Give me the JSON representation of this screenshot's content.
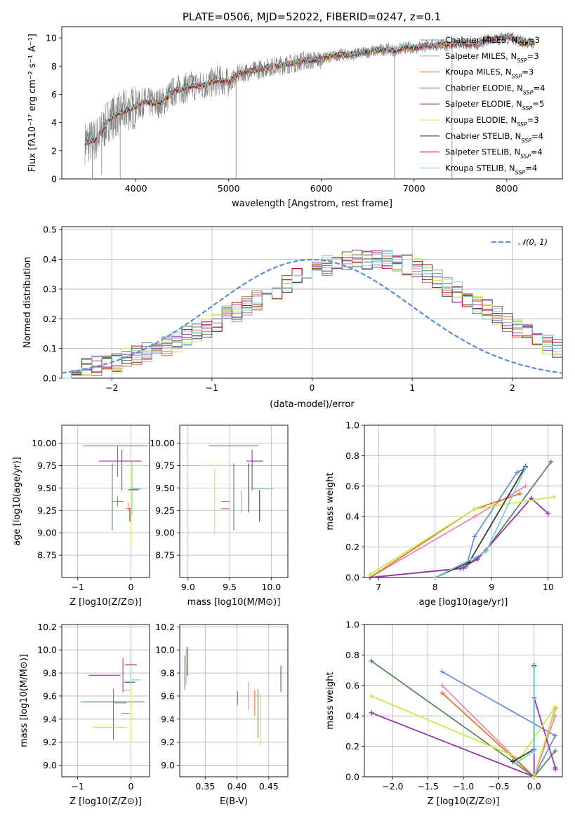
{
  "chart_data": [
    {
      "type": "line",
      "title": "PLATE=0506, MJD=52022, FIBERID=0247, z=0.1",
      "xlabel": "wavelength [Angstrom, rest frame]",
      "ylabel": "Flux [fλ10⁻¹⁷ erg cm⁻² s⁻¹ A⁻¹]",
      "xlim": [
        3200,
        8600
      ],
      "ylim": [
        0,
        10.8
      ],
      "xticks": [
        4000,
        5000,
        6000,
        7000,
        8000
      ],
      "yticks": [
        0,
        2,
        4,
        6,
        8,
        10
      ],
      "data_series": {
        "name": "",
        "color": "#808080",
        "note": "observed spectrum (gray)"
      },
      "legend_position": "top-right",
      "series": [
        {
          "name": "Chabrier MILES, N_SSP=3",
          "color": "#6b8fdc"
        },
        {
          "name": "Salpeter MILES, N_SSP=3",
          "color": "#e88bb3"
        },
        {
          "name": "Kroupa MILES, N_SSP=3",
          "color": "#e0762a"
        },
        {
          "name": "Chabrier ELODIE, N_SSP=4",
          "color": "#5a8a5e"
        },
        {
          "name": "Salpeter ELODIE, N_SSP=5",
          "color": "#9b30b0"
        },
        {
          "name": "Kroupa ELODIE, N_SSP=3",
          "color": "#cde84a"
        },
        {
          "name": "Chabrier STELIB, N_SSP=4",
          "color": "#3a3a3a"
        },
        {
          "name": "Salpeter STELIB, N_SSP=4",
          "color": "#b01818"
        },
        {
          "name": "Kroupa STELIB, N_SSP=4",
          "color": "#7ecfd6"
        }
      ],
      "model_curve": {
        "x": [
          3450,
          3550,
          3650,
          3700,
          3750,
          3800,
          3900,
          4000,
          4100,
          4200,
          4300,
          4400,
          4500,
          4600,
          4700,
          4800,
          4900,
          5000,
          5100,
          5200,
          5300,
          5400,
          5500,
          5600,
          5700,
          5800,
          5900,
          6000,
          6100,
          6200,
          6300,
          6400,
          6500,
          6600,
          6700,
          6800,
          6900,
          7000,
          7100,
          7200,
          7300,
          7400,
          7500,
          7600,
          7700,
          7800,
          7900,
          8000,
          8100,
          8200,
          8300
        ],
        "y": [
          2.6,
          2.7,
          3.5,
          4.2,
          4.4,
          4.5,
          4.9,
          5.1,
          5.5,
          5.3,
          5.5,
          6.2,
          6.4,
          6.6,
          6.6,
          6.8,
          7.0,
          6.8,
          7.4,
          7.6,
          7.7,
          7.9,
          8.0,
          8.1,
          8.2,
          8.4,
          8.4,
          8.5,
          8.7,
          8.8,
          8.8,
          8.9,
          9.0,
          9.1,
          9.2,
          9.1,
          9.3,
          9.3,
          9.4,
          9.5,
          9.5,
          9.5,
          9.6,
          9.5,
          9.6,
          9.9,
          9.9,
          10.1,
          9.9,
          9.7,
          9.6
        ]
      }
    },
    {
      "type": "histogram",
      "xlabel": "(data-model)/error",
      "ylabel": "Normed distribution",
      "xlim": [
        -2.5,
        2.5
      ],
      "ylim": [
        0,
        0.51
      ],
      "xticks": [
        -2,
        -1,
        0,
        1,
        2
      ],
      "yticks": [
        0.0,
        0.1,
        0.2,
        0.3,
        0.4,
        0.5
      ],
      "bin_width": 0.1,
      "bin_start": -2.5,
      "envelope": [
        0.03,
        0.03,
        0.04,
        0.04,
        0.05,
        0.05,
        0.07,
        0.08,
        0.09,
        0.1,
        0.11,
        0.12,
        0.14,
        0.15,
        0.17,
        0.19,
        0.21,
        0.22,
        0.24,
        0.26,
        0.28,
        0.3,
        0.32,
        0.34,
        0.35,
        0.37,
        0.38,
        0.39,
        0.39,
        0.4,
        0.4,
        0.4,
        0.4,
        0.39,
        0.38,
        0.37,
        0.35,
        0.33,
        0.31,
        0.29,
        0.27,
        0.25,
        0.23,
        0.21,
        0.19,
        0.17,
        0.15,
        0.13,
        0.11,
        0.1
      ],
      "gaussian": {
        "name": "𝒩(0, 1)",
        "color": "#5b8ed6",
        "style": "dashed"
      },
      "legend_position": "top-right"
    },
    {
      "type": "scatter",
      "xlabel": "Z [log10(Z/Z⊙)]",
      "ylabel": "age  [log10(age/yr)]",
      "xlim": [
        -1.3,
        0.35
      ],
      "ylim": [
        8.5,
        10.2
      ],
      "xticks": [
        -1,
        0
      ],
      "yticks": [
        8.75,
        9.0,
        9.25,
        9.5,
        9.75,
        10.0
      ],
      "points": [
        {
          "x": -0.3,
          "y": 9.97,
          "xerr": 1.2,
          "yerr": 0.0,
          "color": "#5a8a5e"
        },
        {
          "x": -0.25,
          "y": 9.8,
          "xerr": 0.0,
          "yerr": 0.35,
          "color": "#5a8a5e"
        },
        {
          "x": -0.35,
          "y": 9.4,
          "xerr": 0.0,
          "yerr": 0.75,
          "color": "#5a8a5e"
        },
        {
          "x": -0.2,
          "y": 9.8,
          "xerr": 0.8,
          "yerr": 0.0,
          "color": "#9b30b0"
        },
        {
          "x": -0.17,
          "y": 9.7,
          "xerr": 0.0,
          "yerr": 0.45,
          "color": "#9b30b0"
        },
        {
          "x": 0.0,
          "y": 9.75,
          "xerr": 0.55,
          "yerr": 0.0,
          "color": "#cde84a"
        },
        {
          "x": 0.0,
          "y": 9.3,
          "xerr": 0.0,
          "yerr": 0.9,
          "color": "#cde84a"
        },
        {
          "x": 0.05,
          "y": 9.48,
          "xerr": 0.2,
          "yerr": 0.0,
          "color": "#3a3a3a"
        },
        {
          "x": 0.02,
          "y": 9.5,
          "xerr": 0.0,
          "yerr": 0.6,
          "color": "#7ecfd6"
        },
        {
          "x": 0.1,
          "y": 9.49,
          "xerr": 0.2,
          "yerr": 0.0,
          "color": "#7ecfd6"
        },
        {
          "x": -0.25,
          "y": 9.35,
          "xerr": 0.22,
          "yerr": 0.0,
          "color": "#6b8fdc"
        },
        {
          "x": -0.25,
          "y": 9.35,
          "xerr": 0.0,
          "yerr": 0.12,
          "color": "#6b8fdc"
        },
        {
          "x": -0.05,
          "y": 9.27,
          "xerr": 0.1,
          "yerr": 0.0,
          "color": "#e0762a"
        },
        {
          "x": -0.05,
          "y": 9.3,
          "xerr": 0.0,
          "yerr": 0.08,
          "color": "#e88bb3"
        },
        {
          "x": -0.02,
          "y": 9.2,
          "xerr": 0.0,
          "yerr": 0.15,
          "color": "#b01818"
        }
      ]
    },
    {
      "type": "scatter",
      "xlabel": "mass [log10(M/M⊙)]",
      "ylabel": "",
      "xlim": [
        8.9,
        10.2
      ],
      "ylim": [
        8.5,
        10.2
      ],
      "xticks": [
        9.0,
        9.5,
        10.0
      ],
      "yticks": [
        8.75,
        9.0,
        9.25,
        9.5,
        9.75,
        10.0
      ],
      "points": [
        {
          "x": 9.55,
          "y": 9.97,
          "xerr": 0.6,
          "yerr": 0.0,
          "color": "#5a8a5e"
        },
        {
          "x": 9.55,
          "y": 9.4,
          "xerr": 0.0,
          "yerr": 0.75,
          "color": "#5a8a5e"
        },
        {
          "x": 9.32,
          "y": 9.75,
          "xerr": 0.35,
          "yerr": 0.0,
          "color": "#cde84a"
        },
        {
          "x": 9.32,
          "y": 9.35,
          "xerr": 0.0,
          "yerr": 0.75,
          "color": "#cde84a"
        },
        {
          "x": 9.8,
          "y": 9.8,
          "xerr": 0.2,
          "yerr": 0.0,
          "color": "#9b30b0"
        },
        {
          "x": 9.77,
          "y": 9.7,
          "xerr": 0.0,
          "yerr": 0.45,
          "color": "#9b30b0"
        },
        {
          "x": 9.9,
          "y": 9.49,
          "xerr": 0.25,
          "yerr": 0.0,
          "color": "#7ecfd6"
        },
        {
          "x": 9.73,
          "y": 9.5,
          "xerr": 0.0,
          "yerr": 0.55,
          "color": "#3a3a3a"
        },
        {
          "x": 9.86,
          "y": 9.3,
          "xerr": 0.0,
          "yerr": 0.35,
          "color": "#b01818"
        },
        {
          "x": 9.45,
          "y": 9.35,
          "xerr": 0.1,
          "yerr": 0.0,
          "color": "#6b8fdc"
        },
        {
          "x": 9.45,
          "y": 9.27,
          "xerr": 0.1,
          "yerr": 0.0,
          "color": "#e0762a"
        },
        {
          "x": 9.64,
          "y": 9.35,
          "xerr": 0.0,
          "yerr": 0.25,
          "color": "#e88bb3"
        }
      ]
    },
    {
      "type": "line",
      "xlabel": "age  [log10(age/yr)]",
      "ylabel": "mass weight",
      "xlim": [
        6.75,
        10.25
      ],
      "ylim": [
        0,
        1.0
      ],
      "xticks": [
        7,
        8,
        9,
        10
      ],
      "yticks": [
        0.0,
        0.2,
        0.4,
        0.6,
        0.8,
        1.0
      ],
      "series": [
        {
          "name": "Chabrier MILES",
          "color": "#6b8fdc",
          "x": [
            8.55,
            8.7,
            9.45,
            9.6
          ],
          "y": [
            0.07,
            0.27,
            0.69,
            0.72
          ]
        },
        {
          "name": "Salpeter MILES",
          "color": "#e88bb3",
          "x": [
            6.85,
            8.7,
            9.6
          ],
          "y": [
            0.0,
            0.4,
            0.6
          ]
        },
        {
          "name": "Kroupa MILES",
          "color": "#e0762a",
          "x": [
            6.85,
            8.7,
            9.5
          ],
          "y": [
            0.0,
            0.45,
            0.55
          ]
        },
        {
          "name": "Chabrier ELODIE",
          "color": "#5a8a5e",
          "x": [
            6.85,
            8.5,
            8.9,
            10.05
          ],
          "y": [
            0.0,
            0.06,
            0.18,
            0.76
          ]
        },
        {
          "name": "Salpeter ELODIE",
          "color": "#9b30b0",
          "x": [
            6.85,
            8.45,
            8.75,
            9.7,
            10.0
          ],
          "y": [
            0.0,
            0.06,
            0.12,
            0.52,
            0.42
          ]
        },
        {
          "name": "Kroupa ELODIE",
          "color": "#cde84a",
          "x": [
            6.85,
            8.7,
            10.1
          ],
          "y": [
            0.02,
            0.45,
            0.53
          ]
        },
        {
          "name": "Chabrier STELIB",
          "color": "#3a3a3a",
          "x": [
            8.0,
            8.6,
            9.6
          ],
          "y": [
            0.0,
            0.1,
            0.73
          ]
        },
        {
          "name": "Kroupa STELIB",
          "color": "#7ecfd6",
          "x": [
            8.0,
            8.9,
            9.6
          ],
          "y": [
            0.0,
            0.17,
            0.72
          ]
        }
      ]
    },
    {
      "type": "scatter",
      "xlabel": "Z [log10(Z/Z⊙)]",
      "ylabel": "mass [log10(M/M⊙)]",
      "xlim": [
        -1.3,
        0.35
      ],
      "ylim": [
        8.9,
        10.22
      ],
      "xticks": [
        -1,
        0
      ],
      "yticks": [
        9.0,
        9.2,
        9.4,
        9.6,
        9.8,
        10.0,
        10.2
      ],
      "points": [
        {
          "x": -0.35,
          "y": 9.55,
          "xerr": 1.2,
          "yerr": 0.0,
          "color": "#5a8a5e"
        },
        {
          "x": -0.33,
          "y": 9.44,
          "xerr": 0.0,
          "yerr": 0.44,
          "color": "#5a8a5e"
        },
        {
          "x": -0.5,
          "y": 9.78,
          "xerr": 0.6,
          "yerr": 0.0,
          "color": "#9b30b0"
        },
        {
          "x": -0.15,
          "y": 9.78,
          "xerr": 0.0,
          "yerr": 0.3,
          "color": "#9b30b0"
        },
        {
          "x": -0.4,
          "y": 9.33,
          "xerr": 0.65,
          "yerr": 0.0,
          "color": "#cde84a"
        },
        {
          "x": 0.0,
          "y": 9.5,
          "xerr": 0.0,
          "yerr": 0.6,
          "color": "#cde84a"
        },
        {
          "x": -0.02,
          "y": 9.72,
          "xerr": 0.2,
          "yerr": 0.0,
          "color": "#3a3a3a"
        },
        {
          "x": 0.0,
          "y": 9.85,
          "xerr": 0.0,
          "yerr": 0.3,
          "color": "#7ecfd6"
        },
        {
          "x": 0.1,
          "y": 9.74,
          "xerr": 0.18,
          "yerr": 0.0,
          "color": "#7ecfd6"
        },
        {
          "x": 0.0,
          "y": 9.87,
          "xerr": 0.22,
          "yerr": 0.0,
          "color": "#b01818"
        },
        {
          "x": -0.2,
          "y": 9.54,
          "xerr": 0.22,
          "yerr": 0.0,
          "color": "#6b8fdc"
        },
        {
          "x": -0.1,
          "y": 9.45,
          "xerr": 0.15,
          "yerr": 0.0,
          "color": "#e0762a"
        },
        {
          "x": -0.08,
          "y": 9.65,
          "xerr": 0.12,
          "yerr": 0.0,
          "color": "#e88bb3"
        }
      ]
    },
    {
      "type": "scatter",
      "xlabel": "E(B-V)",
      "ylabel": "",
      "xlim": [
        0.31,
        0.48
      ],
      "ylim": [
        8.9,
        10.22
      ],
      "xticks": [
        0.35,
        0.4,
        0.45
      ],
      "yticks": [
        9.0,
        9.2,
        9.4,
        9.6,
        9.8,
        10.0,
        10.2
      ],
      "points": [
        {
          "x": 0.318,
          "y": 9.8,
          "xerr": 0.0,
          "yerr": 0.3,
          "color": "#5a8a5e"
        },
        {
          "x": 0.32,
          "y": 9.85,
          "xerr": 0.0,
          "yerr": 0.3,
          "color": "#7ecfd6"
        },
        {
          "x": 0.322,
          "y": 9.9,
          "xerr": 0.0,
          "yerr": 0.25,
          "color": "#b01818"
        },
        {
          "x": 0.401,
          "y": 9.58,
          "xerr": 0.0,
          "yerr": 0.12,
          "color": "#6b8fdc"
        },
        {
          "x": 0.418,
          "y": 9.6,
          "xerr": 0.0,
          "yerr": 0.25,
          "color": "#e88bb3"
        },
        {
          "x": 0.428,
          "y": 9.54,
          "xerr": 0.0,
          "yerr": 0.22,
          "color": "#e0762a"
        },
        {
          "x": 0.433,
          "y": 9.45,
          "xerr": 0.0,
          "yerr": 0.42,
          "color": "#5a8a5e"
        },
        {
          "x": 0.437,
          "y": 9.4,
          "xerr": 0.0,
          "yerr": 0.45,
          "color": "#cde84a"
        },
        {
          "x": 0.469,
          "y": 9.75,
          "xerr": 0.0,
          "yerr": 0.23,
          "color": "#9b30b0"
        }
      ]
    },
    {
      "type": "line",
      "xlabel": "Z [log10(Z/Z⊙)]",
      "ylabel": "mass weight",
      "xlim": [
        -2.4,
        0.4
      ],
      "ylim": [
        0,
        1.0
      ],
      "xticks": [
        -2.0,
        -1.5,
        -1.0,
        -0.5,
        0.0
      ],
      "yticks": [
        0.0,
        0.2,
        0.4,
        0.6,
        0.8,
        1.0
      ],
      "series": [
        {
          "name": "Chabrier MILES",
          "color": "#6b8fdc",
          "x": [
            -1.3,
            0.3,
            0.0
          ],
          "y": [
            0.69,
            0.27,
            0.0
          ]
        },
        {
          "name": "Salpeter MILES",
          "color": "#e88bb3",
          "x": [
            -1.3,
            0.0,
            0.3
          ],
          "y": [
            0.6,
            0.0,
            0.4
          ]
        },
        {
          "name": "Kroupa MILES",
          "color": "#e0762a",
          "x": [
            -1.3,
            0.0,
            0.3
          ],
          "y": [
            0.55,
            0.0,
            0.45
          ]
        },
        {
          "name": "Chabrier ELODIE",
          "color": "#5a8a5e",
          "x": [
            -2.3,
            -0.3,
            0.0,
            0.3
          ],
          "y": [
            0.76,
            0.1,
            0.0,
            0.17
          ]
        },
        {
          "name": "Salpeter ELODIE",
          "color": "#9b30b0",
          "x": [
            -2.3,
            0.0,
            0.0,
            0.3,
            0.3
          ],
          "y": [
            0.42,
            0.0,
            0.52,
            0.06,
            0.05
          ]
        },
        {
          "name": "Kroupa ELODIE",
          "color": "#cde84a",
          "x": [
            -2.3,
            -0.2,
            0.3,
            0.0
          ],
          "y": [
            0.53,
            0.12,
            0.46,
            0.0
          ]
        },
        {
          "name": "Chabrier STELIB",
          "color": "#3a3a3a",
          "x": [
            -0.3,
            0.0,
            0.0
          ],
          "y": [
            0.1,
            0.18,
            0.73
          ]
        },
        {
          "name": "Kroupa STELIB",
          "color": "#7ecfd6",
          "x": [
            -0.25,
            0.0,
            0.0
          ],
          "y": [
            0.09,
            0.17,
            0.72
          ]
        }
      ]
    }
  ]
}
